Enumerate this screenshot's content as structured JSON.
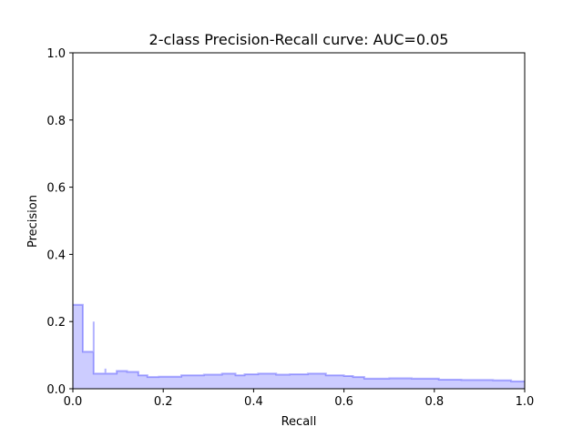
{
  "chart_data": {
    "type": "area",
    "title": "2-class Precision-Recall curve: AUC=0.05",
    "xlabel": "Recall",
    "ylabel": "Precision",
    "xlim": [
      0.0,
      1.0
    ],
    "ylim": [
      0.0,
      1.0
    ],
    "x_ticks": [
      "0.0",
      "0.2",
      "0.4",
      "0.6",
      "0.8",
      "1.0"
    ],
    "y_ticks": [
      "0.0",
      "0.2",
      "0.4",
      "0.6",
      "0.8",
      "1.0"
    ],
    "grid": false,
    "step": "post",
    "series": [
      {
        "color": "#0000ff",
        "recall": [
          0.0,
          0.022,
          0.022,
          0.046,
          0.046,
          0.072,
          0.072,
          0.097,
          0.12,
          0.145,
          0.165,
          0.19,
          0.24,
          0.29,
          0.33,
          0.36,
          0.38,
          0.41,
          0.45,
          0.48,
          0.52,
          0.56,
          0.6,
          0.62,
          0.645,
          0.7,
          0.75,
          0.81,
          0.86,
          0.93,
          0.97,
          1.0
        ],
        "precision": [
          0.25,
          0.25,
          0.11,
          0.2,
          0.045,
          0.06,
          0.045,
          0.053,
          0.05,
          0.04,
          0.035,
          0.036,
          0.04,
          0.042,
          0.045,
          0.04,
          0.043,
          0.045,
          0.042,
          0.043,
          0.045,
          0.04,
          0.038,
          0.035,
          0.03,
          0.031,
          0.03,
          0.027,
          0.026,
          0.025,
          0.022,
          0.022
        ]
      }
    ]
  }
}
